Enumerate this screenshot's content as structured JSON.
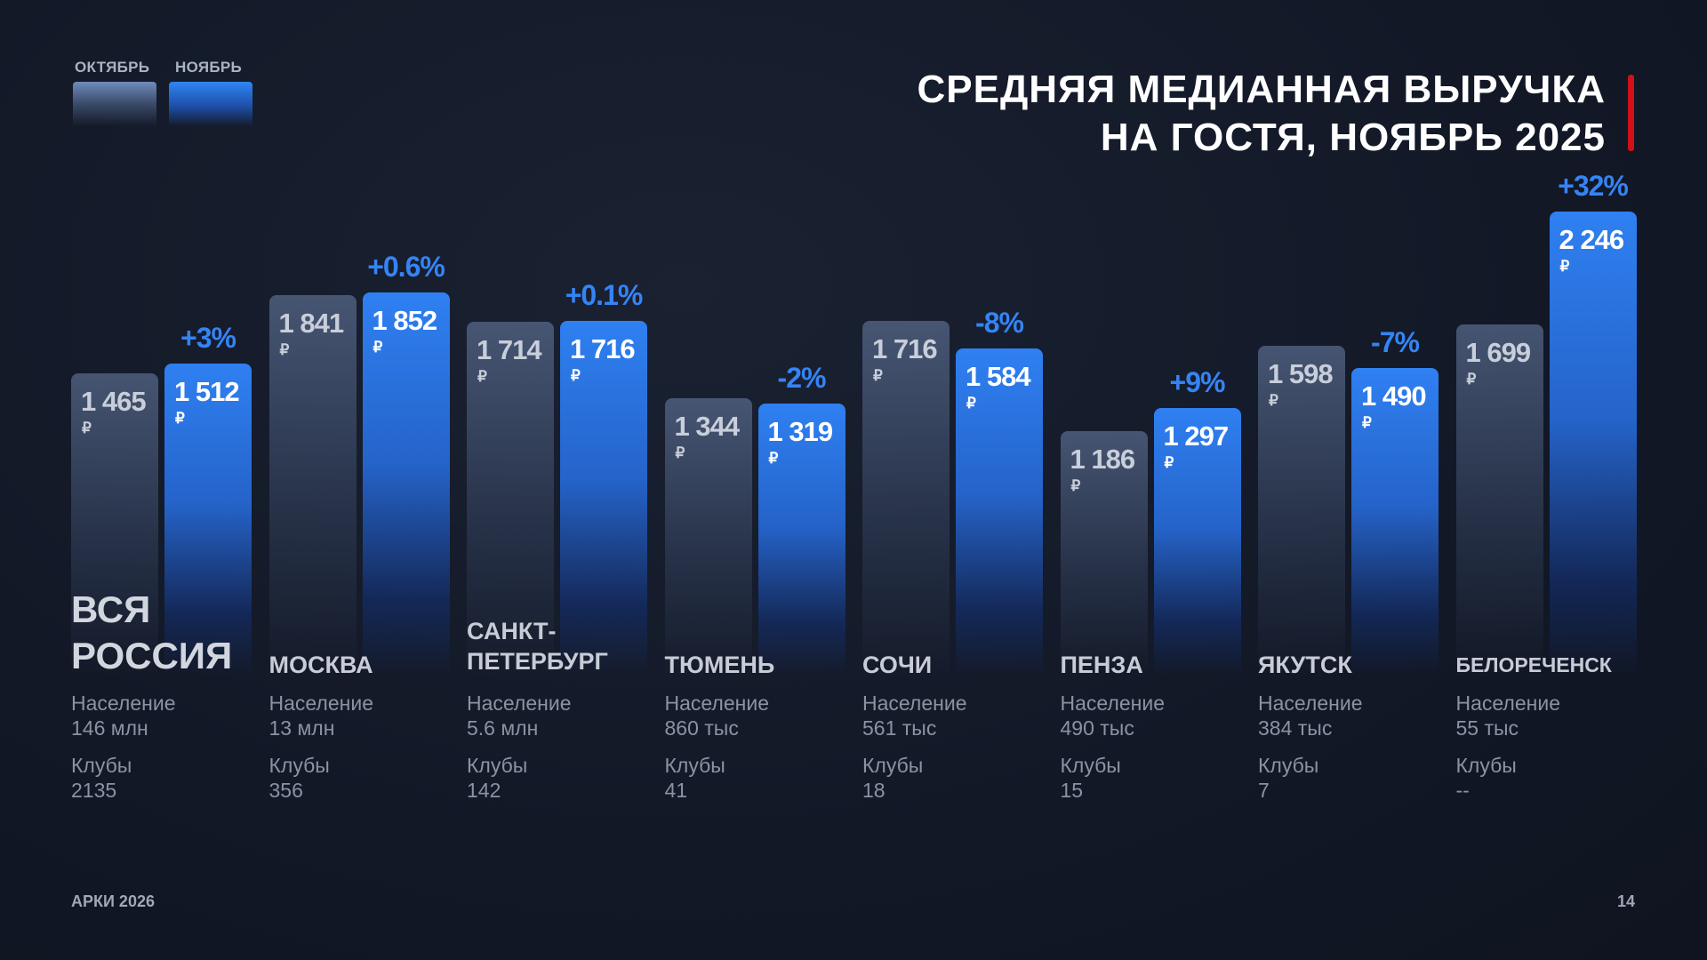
{
  "legend": {
    "october": "ОКТЯБРЬ",
    "november": "НОЯБРЬ"
  },
  "title": {
    "line1": "СРЕДНЯЯ МЕДИАННАЯ ВЫРУЧКА",
    "line2": "НА ГОСТЯ, НОЯБРЬ 2025"
  },
  "footer": {
    "brand": "АРКИ 2026",
    "page": "14"
  },
  "labels": {
    "population": "Население",
    "clubs": "Клубы",
    "currency": "₽"
  },
  "colors": {
    "october": "#4a5a7a",
    "november": "#2f80f2",
    "percent": "#3584f5",
    "accent": "#d0101a"
  },
  "chart_data": {
    "type": "bar",
    "title": "СРЕДНЯЯ МЕДИАННАЯ ВЫРУЧКА НА ГОСТЯ, НОЯБРЬ 2025",
    "unit": "₽",
    "categories": [
      "ВСЯ РОССИЯ",
      "МОСКВА",
      "САНКТ-ПЕТЕРБУРГ",
      "ТЮМЕНЬ",
      "СОЧИ",
      "ПЕНЗА",
      "ЯКУТСК",
      "БЕЛОРЕЧЕНСК"
    ],
    "series": [
      {
        "name": "ОКТЯБРЬ",
        "values": [
          1465,
          1841,
          1714,
          1344,
          1716,
          1186,
          1598,
          1699
        ],
        "labels": [
          "1 465",
          "1 841",
          "1 714",
          "1 344",
          "1 716",
          "1 186",
          "1 598",
          "1 699"
        ]
      },
      {
        "name": "НОЯБРЬ",
        "values": [
          1512,
          1852,
          1716,
          1319,
          1584,
          1297,
          1490,
          2246
        ],
        "labels": [
          "1 512",
          "1 852",
          "1 716",
          "1 319",
          "1 584",
          "1 297",
          "1 490",
          "2 246"
        ]
      }
    ],
    "change": [
      "+3%",
      "+0.6%",
      "+0.1%",
      "-2%",
      "-8%",
      "+9%",
      "-7%",
      "+32%"
    ],
    "population": [
      "146 млн",
      "13 млн",
      "5.6 млн",
      "860 тыс",
      "561 тыс",
      "490 тыс",
      "384 тыс",
      "55 тыс"
    ],
    "clubs": [
      "2135",
      "356",
      "142",
      "41",
      "18",
      "15",
      "7",
      "--"
    ],
    "legend": "top-left"
  }
}
